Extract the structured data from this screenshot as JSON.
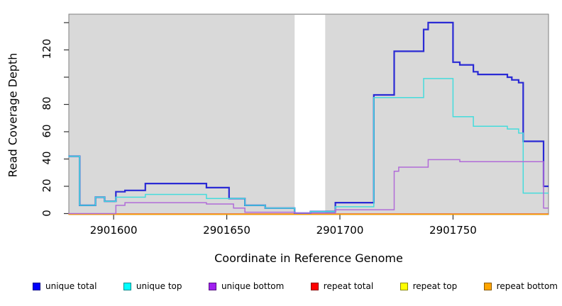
{
  "chart_data": {
    "type": "line",
    "subtype": "step-coverage",
    "title": "",
    "xlabel": "Coordinate in Reference Genome",
    "ylabel": "Read Coverage Depth",
    "x_range": [
      2901580,
      2901792
    ],
    "y_range": [
      0,
      145
    ],
    "x_ticks": [
      2901600,
      2901650,
      2901700,
      2901750
    ],
    "x_tick_labels": [
      "2901600",
      "2901650",
      "2901700",
      "2901750"
    ],
    "y_ticks": [
      0,
      20,
      40,
      60,
      80,
      100,
      120,
      140
    ],
    "y_labeled_values": [
      0,
      20,
      40,
      60,
      80,
      120
    ],
    "y_tick_labels": [
      "0",
      "20",
      "40",
      "60",
      "80",
      "120"
    ],
    "grid": false,
    "plot_background": "#d9d9d9",
    "masked_region": {
      "x_start": 2901680,
      "x_end": 2901693.5,
      "fill": "#ffffff"
    },
    "legend_position": "bottom",
    "series": [
      {
        "name": "unique total",
        "color": "#0000FF",
        "line_color": "#2A2AD4",
        "points": [
          [
            2901580,
            42
          ],
          [
            2901585,
            6
          ],
          [
            2901592,
            12
          ],
          [
            2901596,
            9
          ],
          [
            2901601,
            16
          ],
          [
            2901605,
            17
          ],
          [
            2901614,
            22
          ],
          [
            2901641,
            19
          ],
          [
            2901651,
            11
          ],
          [
            2901658,
            6
          ],
          [
            2901667,
            4
          ],
          [
            2901680,
            0.3
          ],
          [
            2901687,
            1.5
          ],
          [
            2901698,
            8
          ],
          [
            2901715,
            87
          ],
          [
            2901724,
            119
          ],
          [
            2901737,
            135
          ],
          [
            2901739,
            140
          ],
          [
            2901750,
            111
          ],
          [
            2901753,
            109
          ],
          [
            2901759,
            104
          ],
          [
            2901761,
            102
          ],
          [
            2901774,
            100
          ],
          [
            2901776,
            98
          ],
          [
            2901779,
            96
          ],
          [
            2901781,
            53
          ],
          [
            2901790,
            20
          ],
          [
            2901792,
            20
          ]
        ]
      },
      {
        "name": "unique top",
        "color": "#00FFFF",
        "line_color": "#45DCDC",
        "points": [
          [
            2901580,
            42
          ],
          [
            2901585,
            6
          ],
          [
            2901592,
            12
          ],
          [
            2901596,
            9
          ],
          [
            2901601,
            12
          ],
          [
            2901614,
            14
          ],
          [
            2901641,
            11
          ],
          [
            2901658,
            6
          ],
          [
            2901667,
            4
          ],
          [
            2901680,
            0.3
          ],
          [
            2901687,
            1.5
          ],
          [
            2901698,
            5
          ],
          [
            2901715,
            85
          ],
          [
            2901737,
            99
          ],
          [
            2901750,
            71
          ],
          [
            2901759,
            64
          ],
          [
            2901774,
            62
          ],
          [
            2901779,
            59
          ],
          [
            2901781,
            15
          ],
          [
            2901792,
            15
          ]
        ]
      },
      {
        "name": "unique bottom",
        "color": "#A020F0",
        "line_color": "#B16CD8",
        "points": [
          [
            2901580,
            0
          ],
          [
            2901601,
            6
          ],
          [
            2901605,
            8
          ],
          [
            2901641,
            7
          ],
          [
            2901653,
            4
          ],
          [
            2901658,
            1
          ],
          [
            2901680,
            0.3
          ],
          [
            2901698,
            2.8
          ],
          [
            2901724,
            31
          ],
          [
            2901726,
            34
          ],
          [
            2901739,
            39.5
          ],
          [
            2901753,
            38
          ],
          [
            2901790,
            4
          ],
          [
            2901792,
            4
          ]
        ]
      },
      {
        "name": "repeat total",
        "color": "#FF0000",
        "line_color": "#E04050",
        "points": [
          [
            2901580,
            0
          ],
          [
            2901792,
            0
          ]
        ]
      },
      {
        "name": "repeat top",
        "color": "#FFFF00",
        "line_color": "#F0F000",
        "points": [
          [
            2901580,
            0
          ],
          [
            2901792,
            0
          ]
        ]
      },
      {
        "name": "repeat bottom",
        "color": "#FFA500",
        "line_color": "#FF9E00",
        "points": [
          [
            2901580,
            0
          ],
          [
            2901792,
            0
          ]
        ]
      }
    ],
    "legend": [
      {
        "label": "unique total",
        "color": "#0000FF"
      },
      {
        "label": "unique top",
        "color": "#00FFFF"
      },
      {
        "label": "unique bottom",
        "color": "#A020F0"
      },
      {
        "label": "repeat total",
        "color": "#FF0000"
      },
      {
        "label": "repeat top",
        "color": "#FFFF00"
      },
      {
        "label": "repeat bottom",
        "color": "#FFA500"
      }
    ]
  }
}
